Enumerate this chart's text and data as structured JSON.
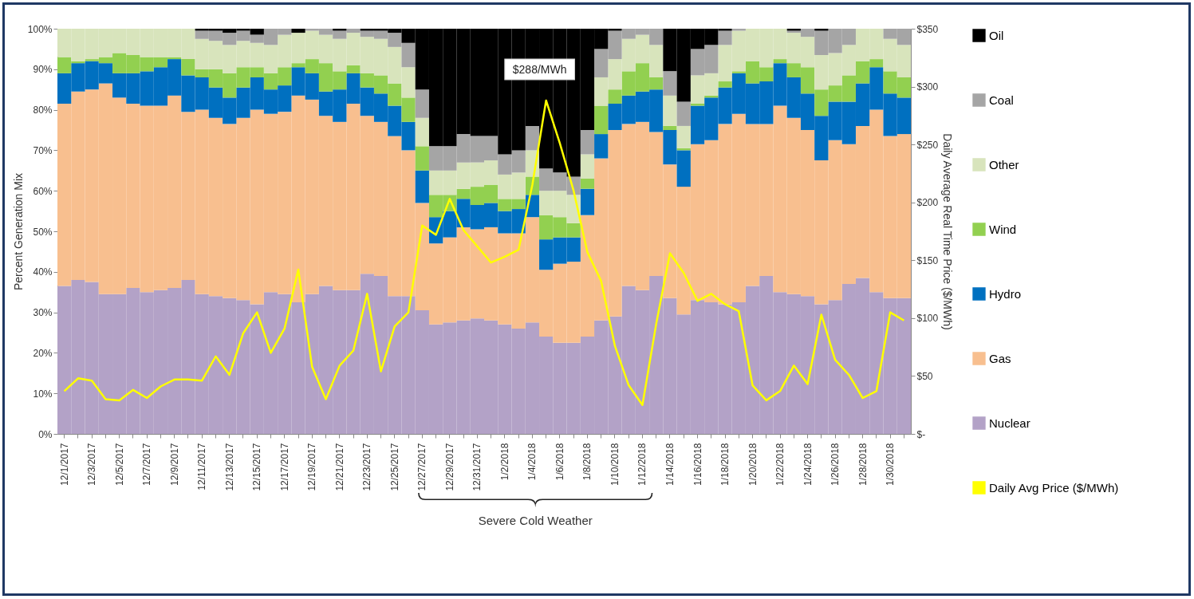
{
  "chart_data": {
    "type": "bar",
    "stacked": true,
    "legend": "right",
    "ylabel": "Percent Generation Mix",
    "y2label": "Daily Average Real Time Price ($/MWh)",
    "categories": [
      "12/1/2017",
      null,
      "12/3/2017",
      null,
      "12/5/2017",
      null,
      "12/7/2017",
      null,
      "12/9/2017",
      null,
      "12/11/2017",
      null,
      "12/13/2017",
      null,
      "12/15/2017",
      null,
      "12/17/2017",
      null,
      "12/19/2017",
      null,
      "12/21/2017",
      null,
      "12/23/2017",
      null,
      "12/25/2017",
      null,
      "12/27/2017",
      null,
      "12/29/2017",
      null,
      "12/31/2017",
      null,
      "1/2/2018",
      null,
      "1/4/2018",
      null,
      "1/6/2018",
      null,
      "1/8/2018",
      null,
      "1/10/2018",
      null,
      "1/12/2018",
      null,
      "1/14/2018",
      null,
      "1/16/2018",
      null,
      "1/18/2018",
      null,
      "1/20/2018",
      null,
      "1/22/2018",
      null,
      "1/24/2018",
      null,
      "1/26/2018",
      null,
      "1/28/2018",
      null,
      "1/30/2018",
      null
    ],
    "ylim": [
      0,
      100
    ],
    "yticks": [
      {
        "value": 0,
        "label": "0%"
      },
      {
        "value": 10,
        "label": "10%"
      },
      {
        "value": 20,
        "label": "20%"
      },
      {
        "value": 30,
        "label": "30%"
      },
      {
        "value": 40,
        "label": "40%"
      },
      {
        "value": 50,
        "label": "50%"
      },
      {
        "value": 60,
        "label": "60%"
      },
      {
        "value": 70,
        "label": "70%"
      },
      {
        "value": 80,
        "label": "80%"
      },
      {
        "value": 90,
        "label": "90%"
      },
      {
        "value": 100,
        "label": "100%"
      }
    ],
    "y2lim": [
      0,
      350
    ],
    "y2ticks": [
      {
        "value": 0,
        "label": "$-"
      },
      {
        "value": 50,
        "label": "$50"
      },
      {
        "value": 100,
        "label": "$100"
      },
      {
        "value": 150,
        "label": "$150"
      },
      {
        "value": 200,
        "label": "$200"
      },
      {
        "value": 250,
        "label": "$250"
      },
      {
        "value": 300,
        "label": "$300"
      },
      {
        "value": 350,
        "label": "$350"
      }
    ],
    "series": [
      {
        "name": "Nuclear",
        "color": "#b3a2c7",
        "values": [
          36.5,
          38,
          37.5,
          34.5,
          34.5,
          36,
          35,
          35.5,
          36,
          38,
          34.5,
          34,
          33.5,
          33,
          32,
          35,
          34.5,
          32.5,
          34.5,
          36.5,
          35.5,
          35.5,
          39.5,
          39,
          34,
          34,
          30.5,
          27,
          27.5,
          28,
          28.5,
          28,
          27,
          26,
          27.5,
          24,
          22.5,
          22.5,
          24,
          28,
          29,
          36.5,
          35.5,
          39,
          33.5,
          29.5,
          33,
          32.5,
          32,
          32.5,
          36.5,
          39,
          35,
          34.5,
          34,
          32,
          33,
          37,
          38.5,
          35,
          33.5,
          33.5
        ]
      },
      {
        "name": "Gas",
        "color": "#f8bf8f",
        "values": [
          45,
          46.5,
          47.5,
          52,
          48.5,
          45.5,
          46,
          45.5,
          47.5,
          41.5,
          45.5,
          44,
          43,
          45,
          48,
          44,
          45,
          51,
          48,
          42,
          41.5,
          46,
          39,
          38,
          39.5,
          36,
          26.5,
          20,
          21,
          23,
          22,
          23,
          22.5,
          23.5,
          26,
          16.5,
          19.5,
          20,
          30,
          40,
          46,
          40,
          41.5,
          35.5,
          33,
          31.5,
          38.5,
          40,
          44.5,
          46.5,
          40,
          37.5,
          46,
          43.5,
          41,
          35.5,
          39.5,
          34.5,
          37.5,
          45,
          40,
          40.5
        ]
      },
      {
        "name": "Hydro",
        "color": "#0070c0",
        "values": [
          7.5,
          7,
          7,
          5,
          6,
          7.5,
          8.5,
          9.5,
          9,
          9,
          8,
          7.5,
          6.5,
          7.5,
          8,
          6,
          6.5,
          7,
          6.5,
          6,
          8,
          7.5,
          7,
          7,
          7.5,
          7,
          8,
          6.5,
          6.5,
          7,
          6,
          6,
          5.5,
          6,
          5.5,
          7.5,
          6.5,
          6,
          6.5,
          6,
          6.5,
          7,
          7.5,
          10.5,
          8.5,
          9,
          9.5,
          10.5,
          9,
          10,
          10,
          10.5,
          10.5,
          10,
          9,
          11,
          9.5,
          10.5,
          10.5,
          10.5,
          10.5,
          9
        ]
      },
      {
        "name": "Wind",
        "color": "#92d050",
        "values": [
          4,
          0.5,
          0.5,
          1.5,
          5,
          4.5,
          3.5,
          2.5,
          0.5,
          4,
          2,
          4.5,
          6,
          5,
          2.5,
          4,
          4.5,
          1,
          3.5,
          7,
          4.5,
          2,
          3.5,
          4.5,
          5.5,
          6,
          6,
          5.5,
          4,
          2.5,
          4.5,
          4.5,
          3,
          2.5,
          4.5,
          6,
          5,
          3.5,
          2.5,
          7,
          3.5,
          6,
          7,
          3,
          1,
          0.5,
          0.5,
          0.5,
          1.5,
          0.5,
          5.5,
          3.5,
          1,
          3.5,
          6.5,
          6.5,
          4,
          6.5,
          5.5,
          2,
          5.5,
          5
        ]
      },
      {
        "name": "Other",
        "color": "#d8e4bc",
        "values": [
          7,
          8,
          7.5,
          7,
          6,
          6.5,
          7,
          7,
          7,
          7.5,
          7.5,
          7,
          7,
          6.5,
          6,
          7,
          8,
          7.5,
          7,
          7,
          8,
          8,
          9,
          9,
          9,
          7.5,
          7,
          6,
          6,
          6.5,
          6,
          6,
          6,
          6.5,
          6.5,
          6,
          6.5,
          7,
          6,
          7,
          7.5,
          8,
          7,
          8,
          7.5,
          5.5,
          7,
          5.5,
          9,
          10,
          8,
          9.5,
          7.5,
          7.5,
          7.5,
          8.5,
          8,
          7.5,
          8,
          7.5,
          8,
          8
        ]
      },
      {
        "name": "Coal",
        "color": "#a5a5a5",
        "values": [
          0,
          0,
          0,
          0,
          0,
          0,
          0,
          0,
          0,
          0,
          2,
          2.5,
          3,
          2.5,
          2,
          4,
          1.5,
          0,
          0.5,
          1.5,
          2,
          1,
          1.5,
          2,
          3.5,
          6,
          7,
          6,
          6,
          7,
          6.5,
          6,
          5,
          5.5,
          6,
          5.5,
          4.5,
          4.5,
          6,
          7,
          7,
          2.5,
          1.5,
          4,
          6,
          6,
          6.5,
          7,
          3.5,
          0.5,
          0,
          0,
          0,
          0.5,
          2,
          6,
          6,
          4,
          0,
          0,
          2.5,
          4
        ]
      },
      {
        "name": "Oil",
        "color": "#000000",
        "values": [
          0,
          0,
          0,
          0,
          0,
          0,
          0,
          0,
          0,
          0,
          0.5,
          0.5,
          1,
          0.5,
          1.5,
          0,
          0,
          1,
          0,
          0,
          0.5,
          0,
          0.5,
          0.5,
          1,
          3.5,
          15,
          29,
          29,
          26,
          26.5,
          26.5,
          31,
          30,
          24,
          34.5,
          35.5,
          36.5,
          25,
          5,
          0.5,
          0,
          0,
          0,
          10.5,
          18,
          5,
          4,
          0.5,
          0,
          0,
          0,
          0,
          0.5,
          0,
          0.5,
          0,
          0,
          0,
          0,
          0,
          0
        ]
      },
      {
        "name": "Daily Avg Price ($/MWh)",
        "type": "line",
        "axis": "y2",
        "color": "#ffff00",
        "values": [
          37,
          48,
          46,
          30,
          29,
          38,
          31,
          41,
          47,
          47,
          46,
          67,
          51,
          87,
          105,
          70,
          91,
          142,
          58,
          30,
          59,
          72,
          121,
          54,
          93,
          105,
          180,
          172,
          203,
          176,
          162,
          148,
          153,
          159,
          215,
          288,
          251,
          210,
          157,
          132,
          76,
          42,
          25,
          95,
          156,
          139,
          115,
          121,
          112,
          106,
          42,
          29,
          37,
          59,
          43,
          103,
          64,
          51,
          31,
          37,
          105,
          98
        ]
      }
    ],
    "annotations": [
      "$288/MWh",
      "Severe Cold Weather"
    ]
  }
}
